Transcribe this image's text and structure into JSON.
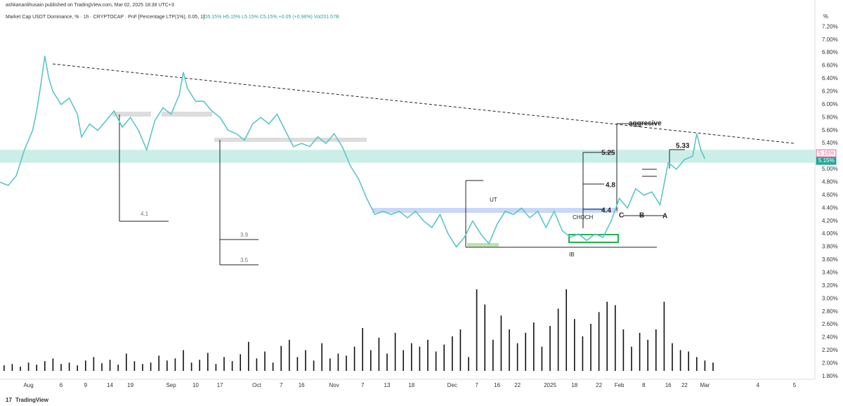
{
  "header": {
    "publisher": "ashkananlihusain published on TradingView.com, Mar 02, 2025 18:38 UTC+3",
    "symbol": "Market Cap USDT Dominance, % · 1h · CRYPTOCAP · PnF [Percentage LTP(1%), 0.05, 1]",
    "ohlc": "O5.15% H5.15% L5.15% C5.15% +0.05 (+0.98%) Vol201.57B"
  },
  "footer": "TradingView",
  "chart_data": {
    "type": "line",
    "unit": "%",
    "xlim": [
      0,
      200
    ],
    "ylim": [
      1.7,
      7.3
    ],
    "y2lim": [
      0,
      130
    ],
    "xticks": [
      {
        "value": 7,
        "label": "Aug"
      },
      {
        "value": 15,
        "label": "6"
      },
      {
        "value": 21,
        "label": "9"
      },
      {
        "value": 27,
        "label": "14"
      },
      {
        "value": 32,
        "label": "19"
      },
      {
        "value": 42,
        "label": "Sep"
      },
      {
        "value": 48,
        "label": "10"
      },
      {
        "value": 54,
        "label": "17"
      },
      {
        "value": 63,
        "label": "Oct"
      },
      {
        "value": 69,
        "label": "7"
      },
      {
        "value": 74,
        "label": "16"
      },
      {
        "value": 82,
        "label": "Nov"
      },
      {
        "value": 89,
        "label": "7"
      },
      {
        "value": 95,
        "label": "13"
      },
      {
        "value": 101,
        "label": "18"
      },
      {
        "value": 111,
        "label": "Dec"
      },
      {
        "value": 117,
        "label": "7"
      },
      {
        "value": 122,
        "label": "16"
      },
      {
        "value": 127,
        "label": "22"
      },
      {
        "value": 135,
        "label": "2025"
      },
      {
        "value": 141,
        "label": "18"
      },
      {
        "value": 147,
        "label": "22"
      },
      {
        "value": 152,
        "label": "Feb"
      },
      {
        "value": 158,
        "label": "8"
      },
      {
        "value": 164,
        "label": "16"
      },
      {
        "value": 168,
        "label": "22"
      },
      {
        "value": 173,
        "label": "Mar"
      },
      {
        "value": 186,
        "label": "4"
      },
      {
        "value": 195,
        "label": "5"
      }
    ],
    "yticks": [
      {
        "value": 1.8,
        "label": "1.80%"
      },
      {
        "value": 2.0,
        "label": "2.00%"
      },
      {
        "value": 2.2,
        "label": "2.20%"
      },
      {
        "value": 2.4,
        "label": "2.40%"
      },
      {
        "value": 2.6,
        "label": "2.60%"
      },
      {
        "value": 2.8,
        "label": "2.80%"
      },
      {
        "value": 3.0,
        "label": "3.00%"
      },
      {
        "value": 3.2,
        "label": "3.20%"
      },
      {
        "value": 3.4,
        "label": "3.40%"
      },
      {
        "value": 3.6,
        "label": "3.60%"
      },
      {
        "value": 3.8,
        "label": "3.80%"
      },
      {
        "value": 4.0,
        "label": "4.00%"
      },
      {
        "value": 4.2,
        "label": "4.20%"
      },
      {
        "value": 4.4,
        "label": "4.40%"
      },
      {
        "value": 4.6,
        "label": "4.60%"
      },
      {
        "value": 4.8,
        "label": "4.80%"
      },
      {
        "value": 5.0,
        "label": "5.00%"
      },
      {
        "value": 5.4,
        "label": "5.40%"
      },
      {
        "value": 5.6,
        "label": "5.60%"
      },
      {
        "value": 5.8,
        "label": "5.80%"
      },
      {
        "value": 6.0,
        "label": "6.00%"
      },
      {
        "value": 6.2,
        "label": "6.20%"
      },
      {
        "value": 6.4,
        "label": "6.40%"
      },
      {
        "value": 6.6,
        "label": "6.60%"
      },
      {
        "value": 6.8,
        "label": "6.80%"
      },
      {
        "value": 7.0,
        "label": "7.00%"
      },
      {
        "value": 7.2,
        "label": "7.20%"
      }
    ],
    "price_labels": [
      {
        "value": 5.16,
        "label": "5.16%",
        "color": "#f06292"
      },
      {
        "value": 5.15,
        "label": "5.15%",
        "color": "#26a69a"
      }
    ],
    "band": [
      5.1,
      5.3
    ],
    "series": [
      {
        "color": "#5cc6c6",
        "x": [
          0,
          2,
          4,
          6,
          8,
          9,
          10,
          11,
          12,
          13,
          15,
          17,
          19,
          20,
          22,
          24,
          26,
          28,
          30,
          32,
          34,
          36,
          38,
          40,
          42,
          44,
          45,
          46,
          48,
          50,
          52,
          54,
          56,
          58,
          60,
          62,
          64,
          66,
          68,
          70,
          72,
          74,
          76,
          78,
          80,
          82,
          84,
          86,
          88,
          90,
          92,
          94,
          96,
          98,
          100,
          102,
          104,
          106,
          108,
          110,
          112,
          114,
          116,
          118,
          120,
          122,
          124,
          126,
          128,
          130,
          132,
          134,
          136,
          138,
          140,
          142,
          144,
          146,
          148,
          150,
          152,
          154,
          156,
          158,
          160,
          162,
          164,
          166,
          168,
          170,
          171,
          172,
          173
        ],
        "values": [
          4.8,
          4.75,
          4.9,
          5.3,
          5.6,
          5.9,
          6.3,
          6.75,
          6.4,
          6.2,
          6.0,
          6.1,
          5.85,
          5.5,
          5.7,
          5.6,
          5.75,
          5.9,
          5.65,
          5.8,
          5.6,
          5.3,
          5.75,
          5.95,
          5.85,
          6.15,
          6.5,
          6.25,
          6.05,
          6.05,
          5.9,
          5.8,
          5.6,
          5.55,
          5.45,
          5.7,
          5.8,
          5.7,
          5.85,
          5.6,
          5.35,
          5.4,
          5.35,
          5.5,
          5.4,
          5.55,
          5.35,
          5.05,
          4.85,
          4.55,
          4.3,
          4.35,
          4.3,
          4.35,
          4.25,
          4.35,
          4.2,
          4.1,
          4.3,
          4.0,
          3.8,
          3.95,
          4.2,
          4.0,
          3.85,
          4.15,
          4.35,
          4.3,
          4.4,
          4.25,
          4.35,
          4.1,
          4.35,
          4.05,
          3.95,
          4.0,
          3.9,
          4.0,
          3.95,
          4.2,
          4.55,
          4.4,
          4.7,
          4.6,
          4.65,
          4.45,
          5.1,
          5.0,
          5.15,
          5.2,
          5.55,
          5.3,
          5.16
        ]
      },
      {
        "axis": "y2",
        "color": "#111111",
        "x": [
          1,
          3,
          5,
          7,
          9,
          11,
          13,
          15,
          17,
          19,
          21,
          23,
          25,
          27,
          29,
          31,
          33,
          35,
          37,
          39,
          41,
          43,
          45,
          47,
          49,
          51,
          53,
          55,
          57,
          59,
          61,
          63,
          65,
          67,
          69,
          71,
          73,
          75,
          77,
          79,
          81,
          83,
          85,
          87,
          89,
          91,
          93,
          95,
          97,
          99,
          101,
          103,
          105,
          107,
          109,
          111,
          113,
          115,
          117,
          119,
          121,
          123,
          125,
          127,
          129,
          131,
          133,
          135,
          137,
          139,
          141,
          143,
          145,
          147,
          149,
          151,
          153,
          155,
          157,
          159,
          161,
          163,
          165,
          167,
          169,
          171,
          173,
          175
        ],
        "values": [
          8,
          10,
          6,
          12,
          9,
          14,
          18,
          10,
          12,
          8,
          15,
          20,
          11,
          16,
          9,
          25,
          14,
          10,
          12,
          22,
          15,
          18,
          30,
          12,
          16,
          26,
          10,
          20,
          14,
          24,
          42,
          18,
          28,
          12,
          36,
          45,
          20,
          30,
          15,
          40,
          18,
          25,
          22,
          35,
          62,
          30,
          48,
          25,
          55,
          30,
          40,
          35,
          45,
          28,
          38,
          50,
          60,
          20,
          118,
          96,
          45,
          80,
          60,
          40,
          55,
          70,
          35,
          65,
          90,
          118,
          75,
          50,
          68,
          85,
          100,
          95,
          60,
          35,
          55,
          45,
          60,
          100,
          40,
          30,
          28,
          20,
          15,
          12
        ]
      }
    ],
    "annotations": [
      "4.1",
      "3.9",
      "3.5",
      "UT",
      "CHOCH",
      "IB",
      "aggresive",
      "5.25",
      "4.8",
      "4.4",
      "5.33",
      "C",
      "B",
      "A"
    ]
  }
}
